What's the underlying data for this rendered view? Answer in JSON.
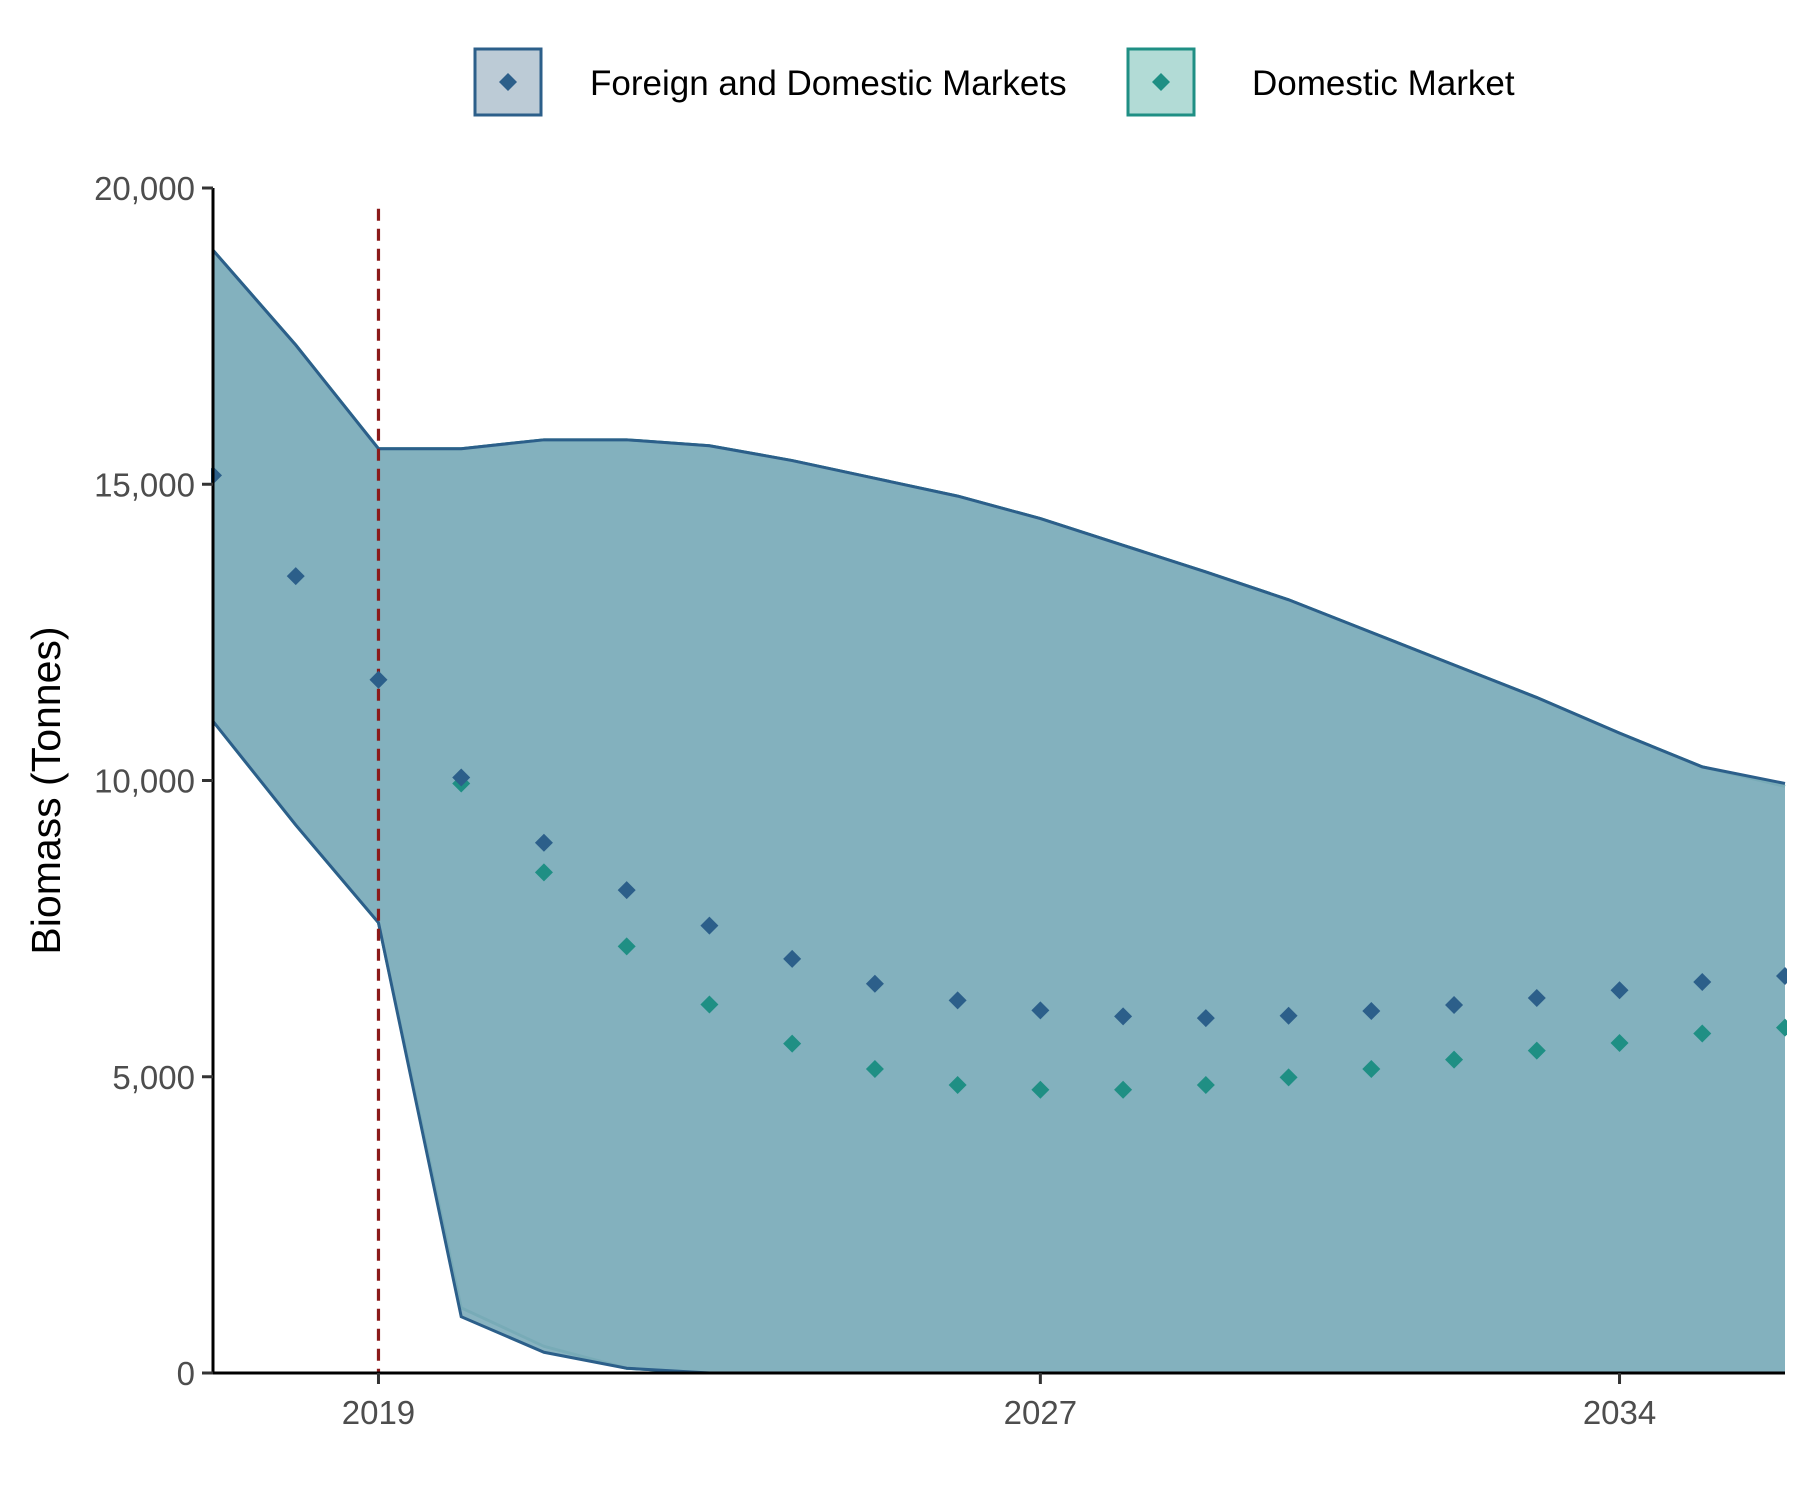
{
  "chart_data": {
    "type": "area",
    "xlabel": "",
    "ylabel": "Biomass (Tonnes)",
    "xlim": [
      2017,
      2036
    ],
    "ylim": [
      0,
      20000
    ],
    "x_ticks": [
      2019,
      2027,
      2034
    ],
    "y_ticks": [
      0,
      5000,
      10000,
      15000,
      20000
    ],
    "y_tick_labels": [
      "0",
      "5,000",
      "10,000",
      "15,000",
      "20,000"
    ],
    "grid": false,
    "legend_position": "top",
    "reference_line": {
      "x": 2019,
      "style": "dashed",
      "color": "#8b1a1a"
    },
    "colors": {
      "foreign_and_domestic": "#2c5f8a",
      "domestic": "#1f8f84",
      "band_fill": "#7fadbb",
      "reference": "#8b1a1a"
    },
    "x": [
      2017,
      2018,
      2019,
      2020,
      2021,
      2022,
      2023,
      2024,
      2025,
      2026,
      2027,
      2028,
      2029,
      2030,
      2031,
      2032,
      2033,
      2034,
      2035,
      2036
    ],
    "series": [
      {
        "name": "Foreign and Domestic Markets",
        "marker": "diamond",
        "values": [
          15150,
          13450,
          11700,
          10050,
          8950,
          8150,
          7550,
          6990,
          6570,
          6290,
          6120,
          6020,
          5990,
          6030,
          6110,
          6210,
          6330,
          6460,
          6600,
          6700
        ],
        "band_upper": [
          18950,
          17350,
          15600,
          15600,
          15750,
          15750,
          15650,
          15400,
          15100,
          14800,
          14420,
          13970,
          13520,
          13050,
          12500,
          11950,
          11400,
          10800,
          10230,
          9950
        ],
        "band_lower": [
          11000,
          9250,
          7600,
          950,
          350,
          80,
          0,
          0,
          0,
          0,
          0,
          0,
          0,
          0,
          0,
          0,
          0,
          0,
          0,
          0
        ]
      },
      {
        "name": "Domestic Market",
        "marker": "diamond",
        "values": [
          null,
          null,
          null,
          9950,
          8450,
          7200,
          6220,
          5560,
          5130,
          4860,
          4780,
          4780,
          4860,
          4990,
          5130,
          5290,
          5440,
          5570,
          5730,
          5830
        ],
        "band_upper": [
          18950,
          17350,
          15600,
          15600,
          15750,
          15750,
          15650,
          15400,
          15100,
          14800,
          14420,
          13970,
          13520,
          13050,
          12500,
          11950,
          11400,
          10800,
          10230,
          9900
        ],
        "band_lower": [
          11000,
          9250,
          7600,
          1100,
          450,
          80,
          0,
          0,
          0,
          0,
          0,
          0,
          0,
          0,
          0,
          0,
          0,
          0,
          0,
          0
        ]
      }
    ]
  }
}
